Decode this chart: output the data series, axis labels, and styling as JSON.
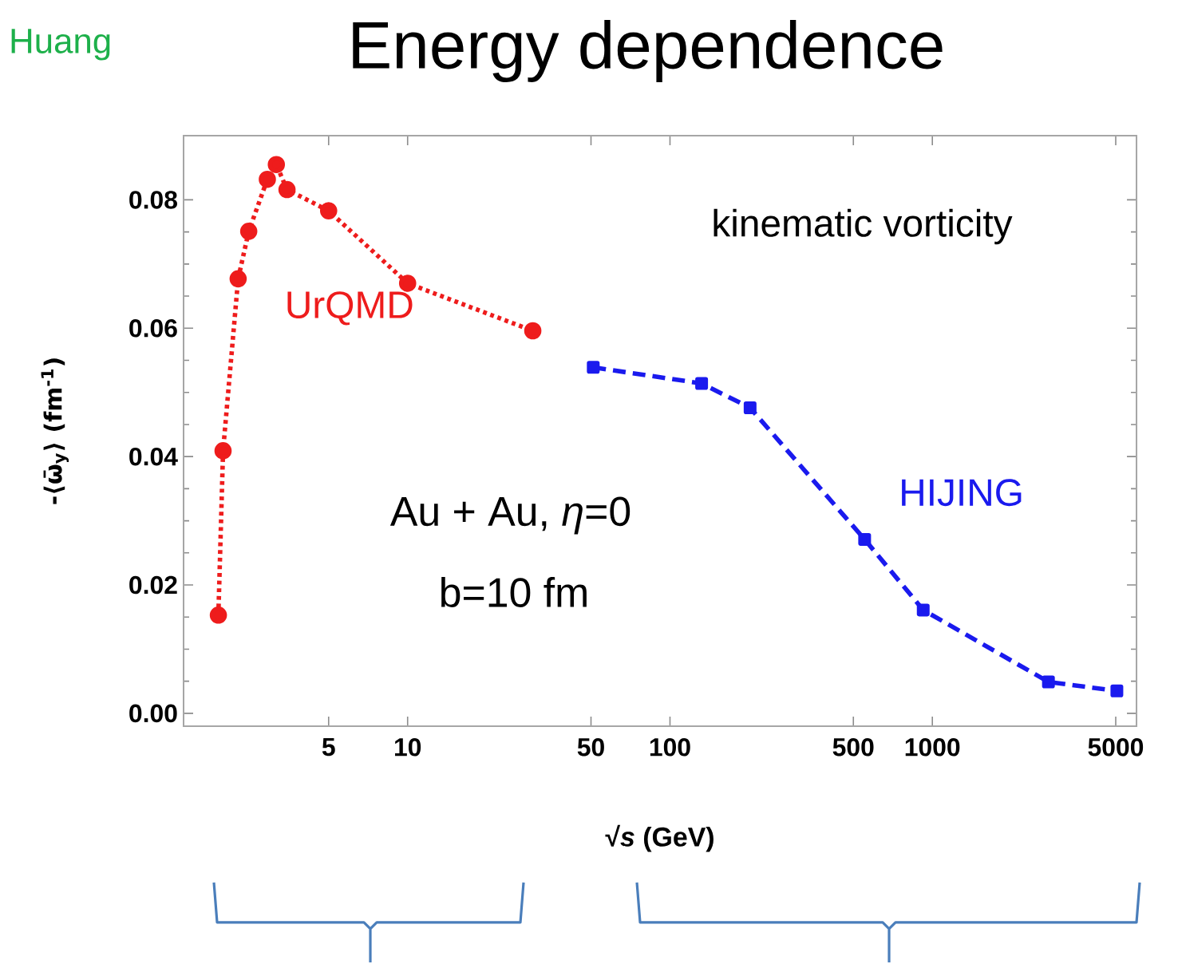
{
  "chart_data": {
    "type": "line",
    "title": "Energy dependence",
    "xlabel": "√*s* (GeV)",
    "ylabel": "-⟨ω̄$_{y}$⟩ (fm$^{-1}$)",
    "log": "x",
    "xlim": [
      1.4,
      6000
    ],
    "xticks": [
      5,
      10,
      50,
      100,
      500,
      1000,
      5000
    ],
    "ylim": [
      -0.002,
      0.09
    ],
    "yticks": [
      {
        "value": 0,
        "label": "0.00"
      },
      {
        "value": 0.02,
        "label": "0.02"
      },
      {
        "value": 0.04,
        "label": "0.04"
      },
      {
        "value": 0.06,
        "label": "0.06"
      },
      {
        "value": 0.08,
        "label": "0.08"
      }
    ],
    "series": [
      {
        "name": "UrQMD",
        "color": "#ee1c1c",
        "marker": "circle",
        "line_style": "dotted",
        "x": [
          1.9,
          1.98,
          2.26,
          2.48,
          2.92,
          3.16,
          3.47,
          5,
          10,
          30
        ],
        "values": [
          0.0153,
          0.0409,
          0.0677,
          0.0751,
          0.0832,
          0.0855,
          0.0816,
          0.0783,
          0.067,
          0.0596
        ]
      },
      {
        "name": "HIJING",
        "color": "#1a1aee",
        "marker": "square",
        "line_style": "dashed",
        "x": [
          51,
          132,
          202,
          552,
          923,
          2770,
          5050
        ],
        "values": [
          0.0539,
          0.0514,
          0.0476,
          0.0271,
          0.0161,
          0.0049,
          0.0035
        ]
      }
    ],
    "annotations": [
      "kinematic vorticity",
      "Au + Au, *η*=0",
      "b=10 fm",
      "Huang"
    ]
  }
}
